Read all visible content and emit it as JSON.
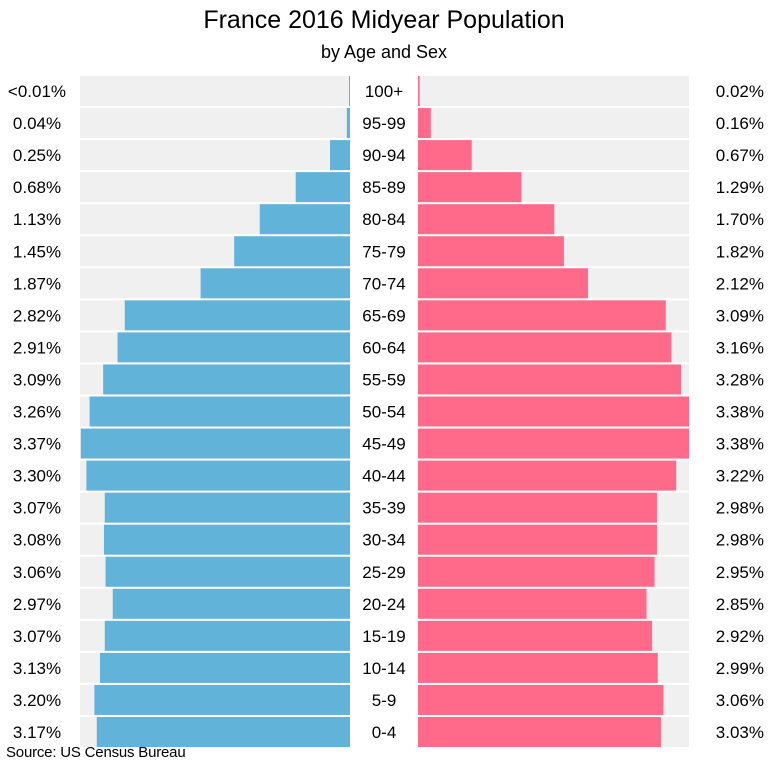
{
  "chart_data": {
    "type": "bar",
    "title": "France 2016 Midyear Population",
    "subtitle": "by Age and Sex",
    "source": "Source: US Census Bureau",
    "categories": [
      "100+",
      "95-99",
      "90-94",
      "85-89",
      "80-84",
      "75-79",
      "70-74",
      "65-69",
      "60-64",
      "55-59",
      "50-54",
      "45-49",
      "40-44",
      "35-39",
      "30-34",
      "25-29",
      "20-24",
      "15-19",
      "10-14",
      "5-9",
      "0-4"
    ],
    "series": [
      {
        "side": "left",
        "color": "#62b3da",
        "values": [
          0.005,
          0.04,
          0.25,
          0.68,
          1.13,
          1.45,
          1.87,
          2.82,
          2.91,
          3.09,
          3.26,
          3.37,
          3.3,
          3.07,
          3.08,
          3.06,
          2.97,
          3.07,
          3.13,
          3.2,
          3.17
        ],
        "labels": [
          "<0.01%",
          "0.04%",
          "0.25%",
          "0.68%",
          "1.13%",
          "1.45%",
          "1.87%",
          "2.82%",
          "2.91%",
          "3.09%",
          "3.26%",
          "3.37%",
          "3.30%",
          "3.07%",
          "3.08%",
          "3.06%",
          "2.97%",
          "3.07%",
          "3.13%",
          "3.20%",
          "3.17%"
        ]
      },
      {
        "side": "right",
        "color": "#ff6a8b",
        "values": [
          0.02,
          0.16,
          0.67,
          1.29,
          1.7,
          1.82,
          2.12,
          3.09,
          3.16,
          3.28,
          3.38,
          3.38,
          3.22,
          2.98,
          2.98,
          2.95,
          2.85,
          2.92,
          2.99,
          3.06,
          3.03
        ],
        "labels": [
          "0.02%",
          "0.16%",
          "0.67%",
          "1.29%",
          "1.70%",
          "1.82%",
          "2.12%",
          "3.09%",
          "3.16%",
          "3.28%",
          "3.38%",
          "3.38%",
          "3.22%",
          "2.98%",
          "2.98%",
          "2.95%",
          "2.85%",
          "2.92%",
          "2.99%",
          "3.06%",
          "3.03%"
        ]
      }
    ],
    "xlim": [
      0,
      3.38
    ],
    "background_color": "#f0f0f0",
    "grid": false,
    "legend": "none"
  }
}
